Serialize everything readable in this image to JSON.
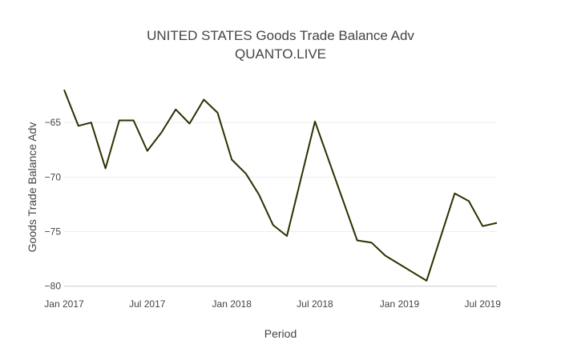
{
  "chart_data": {
    "type": "line",
    "title_line1": "UNITED STATES Goods Trade Balance Adv",
    "title_line2": "QUANTO.LIVE",
    "xlabel": "Period",
    "ylabel": "Goods Trade Balance Adv",
    "ylim": [
      -80.9,
      -61.1
    ],
    "xlim": [
      "2017-01-01",
      "2019-08-01"
    ],
    "y_ticks": [
      -80,
      -75,
      -70,
      -65
    ],
    "x_ticks": [
      {
        "date": "2017-01-01",
        "label": "Jan 2017"
      },
      {
        "date": "2017-07-01",
        "label": "Jul 2017"
      },
      {
        "date": "2018-01-01",
        "label": "Jan 2018"
      },
      {
        "date": "2018-07-01",
        "label": "Jul 2018"
      },
      {
        "date": "2019-01-01",
        "label": "Jan 2019"
      },
      {
        "date": "2019-07-01",
        "label": "Jul 2019"
      }
    ],
    "grid": true,
    "line_color": "#2f2f00",
    "series": [
      {
        "x": [
          "2017-01-01",
          "2017-02-01",
          "2017-03-01",
          "2017-04-01",
          "2017-05-01",
          "2017-06-01",
          "2017-07-01",
          "2017-08-01",
          "2017-09-01",
          "2017-10-01",
          "2017-11-01",
          "2017-12-01",
          "2018-01-01",
          "2018-02-01",
          "2018-03-01",
          "2018-04-01",
          "2018-05-01",
          "2018-07-01",
          "2018-10-01",
          "2018-11-01",
          "2018-12-01",
          "2019-03-01",
          "2019-05-01",
          "2019-06-01",
          "2019-07-01",
          "2019-08-01"
        ],
        "y": [
          -62.0,
          -65.3,
          -65.0,
          -69.2,
          -64.8,
          -64.8,
          -67.6,
          -65.9,
          -63.8,
          -65.1,
          -62.9,
          -64.1,
          -68.4,
          -69.7,
          -71.6,
          -74.4,
          -75.4,
          -64.9,
          -75.8,
          -76.0,
          -77.2,
          -79.5,
          -71.5,
          -72.2,
          -74.5,
          -74.2
        ]
      }
    ]
  }
}
